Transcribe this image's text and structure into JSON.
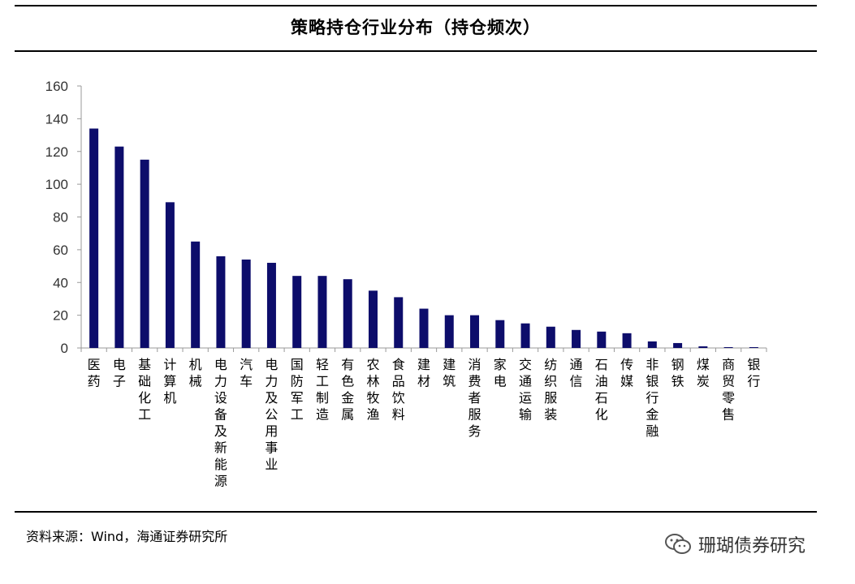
{
  "header": {
    "title": "策略持仓行业分布（持仓频次）"
  },
  "footer": {
    "source": "资料来源：Wind，海通证券研究所"
  },
  "watermark": {
    "text": "珊瑚债券研究",
    "icon": "wechat-icon"
  },
  "colors": {
    "bar": "#0d0d6b",
    "axis": "#999999"
  },
  "chart_data": {
    "type": "bar",
    "title": "策略持仓行业分布（持仓频次）",
    "xlabel": "",
    "ylabel": "",
    "ylim": [
      0,
      160
    ],
    "yticks": [
      0,
      20,
      40,
      60,
      80,
      100,
      120,
      140,
      160
    ],
    "grid": false,
    "legend": "none",
    "categories": [
      "医药",
      "电子",
      "基础化工",
      "计算机",
      "机械",
      "电力设备及新能源",
      "汽车",
      "电力及公用事业",
      "国防军工",
      "轻工制造",
      "有色金属",
      "农林牧渔",
      "食品饮料",
      "建材",
      "建筑",
      "消费者服务",
      "家电",
      "交通运输",
      "纺织服装",
      "通信",
      "石油石化",
      "传媒",
      "非银行金融",
      "钢铁",
      "煤炭",
      "商贸零售",
      "银行"
    ],
    "values": [
      134,
      123,
      115,
      89,
      65,
      56,
      54,
      52,
      44,
      44,
      42,
      35,
      31,
      24,
      20,
      20,
      17,
      15,
      13,
      11,
      10,
      9,
      4,
      3,
      1,
      0.5,
      0.5
    ]
  }
}
